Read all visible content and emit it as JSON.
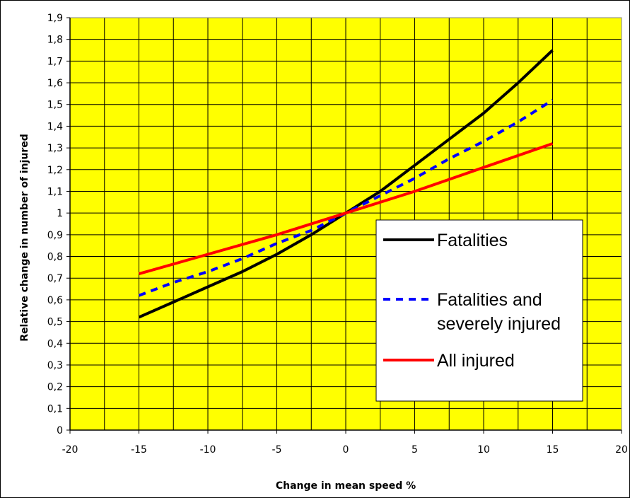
{
  "chart_data": {
    "type": "line",
    "title": "",
    "xlabel": "Change in mean speed %",
    "ylabel": "Relative change in number of injured",
    "xlim": [
      -20,
      20
    ],
    "ylim": [
      0,
      1.9
    ],
    "x_ticks": [
      "-20",
      "-15",
      "-10",
      "-5",
      "0",
      "5",
      "10",
      "15",
      "20"
    ],
    "y_ticks": [
      "0",
      "0,1",
      "0,2",
      "0,3",
      "0,4",
      "0,5",
      "0,6",
      "0,7",
      "0,8",
      "0,9",
      "1",
      "1,1",
      "1,2",
      "1,3",
      "1,4",
      "1,5",
      "1,6",
      "1,7",
      "1,8",
      "1,9"
    ],
    "grid": true,
    "background": "#ffff00",
    "legend_position": "right",
    "series": [
      {
        "name": "Fatalities",
        "color": "#000000",
        "style": "solid",
        "x": [
          -15,
          -12.5,
          -10,
          -7.5,
          -5,
          -2.5,
          0,
          2.5,
          5,
          7.5,
          10,
          12.5,
          15
        ],
        "y": [
          0.52,
          0.59,
          0.66,
          0.73,
          0.81,
          0.9,
          1.0,
          1.1,
          1.22,
          1.34,
          1.46,
          1.6,
          1.75
        ]
      },
      {
        "name": "Fatalities and\nseverely injured",
        "color": "#0000ff",
        "style": "dashed",
        "x": [
          -15,
          -12.5,
          -10,
          -7.5,
          -5,
          -2.5,
          0,
          2.5,
          5,
          7.5,
          10,
          12.5,
          15
        ],
        "y": [
          0.62,
          0.68,
          0.73,
          0.79,
          0.86,
          0.92,
          1.0,
          1.08,
          1.16,
          1.25,
          1.33,
          1.42,
          1.52
        ]
      },
      {
        "name": "All injured",
        "color": "#ff0000",
        "style": "solid",
        "x": [
          -15,
          -10,
          -5,
          0,
          5,
          10,
          15
        ],
        "y": [
          0.72,
          0.81,
          0.9,
          1.0,
          1.1,
          1.21,
          1.32
        ]
      }
    ]
  }
}
